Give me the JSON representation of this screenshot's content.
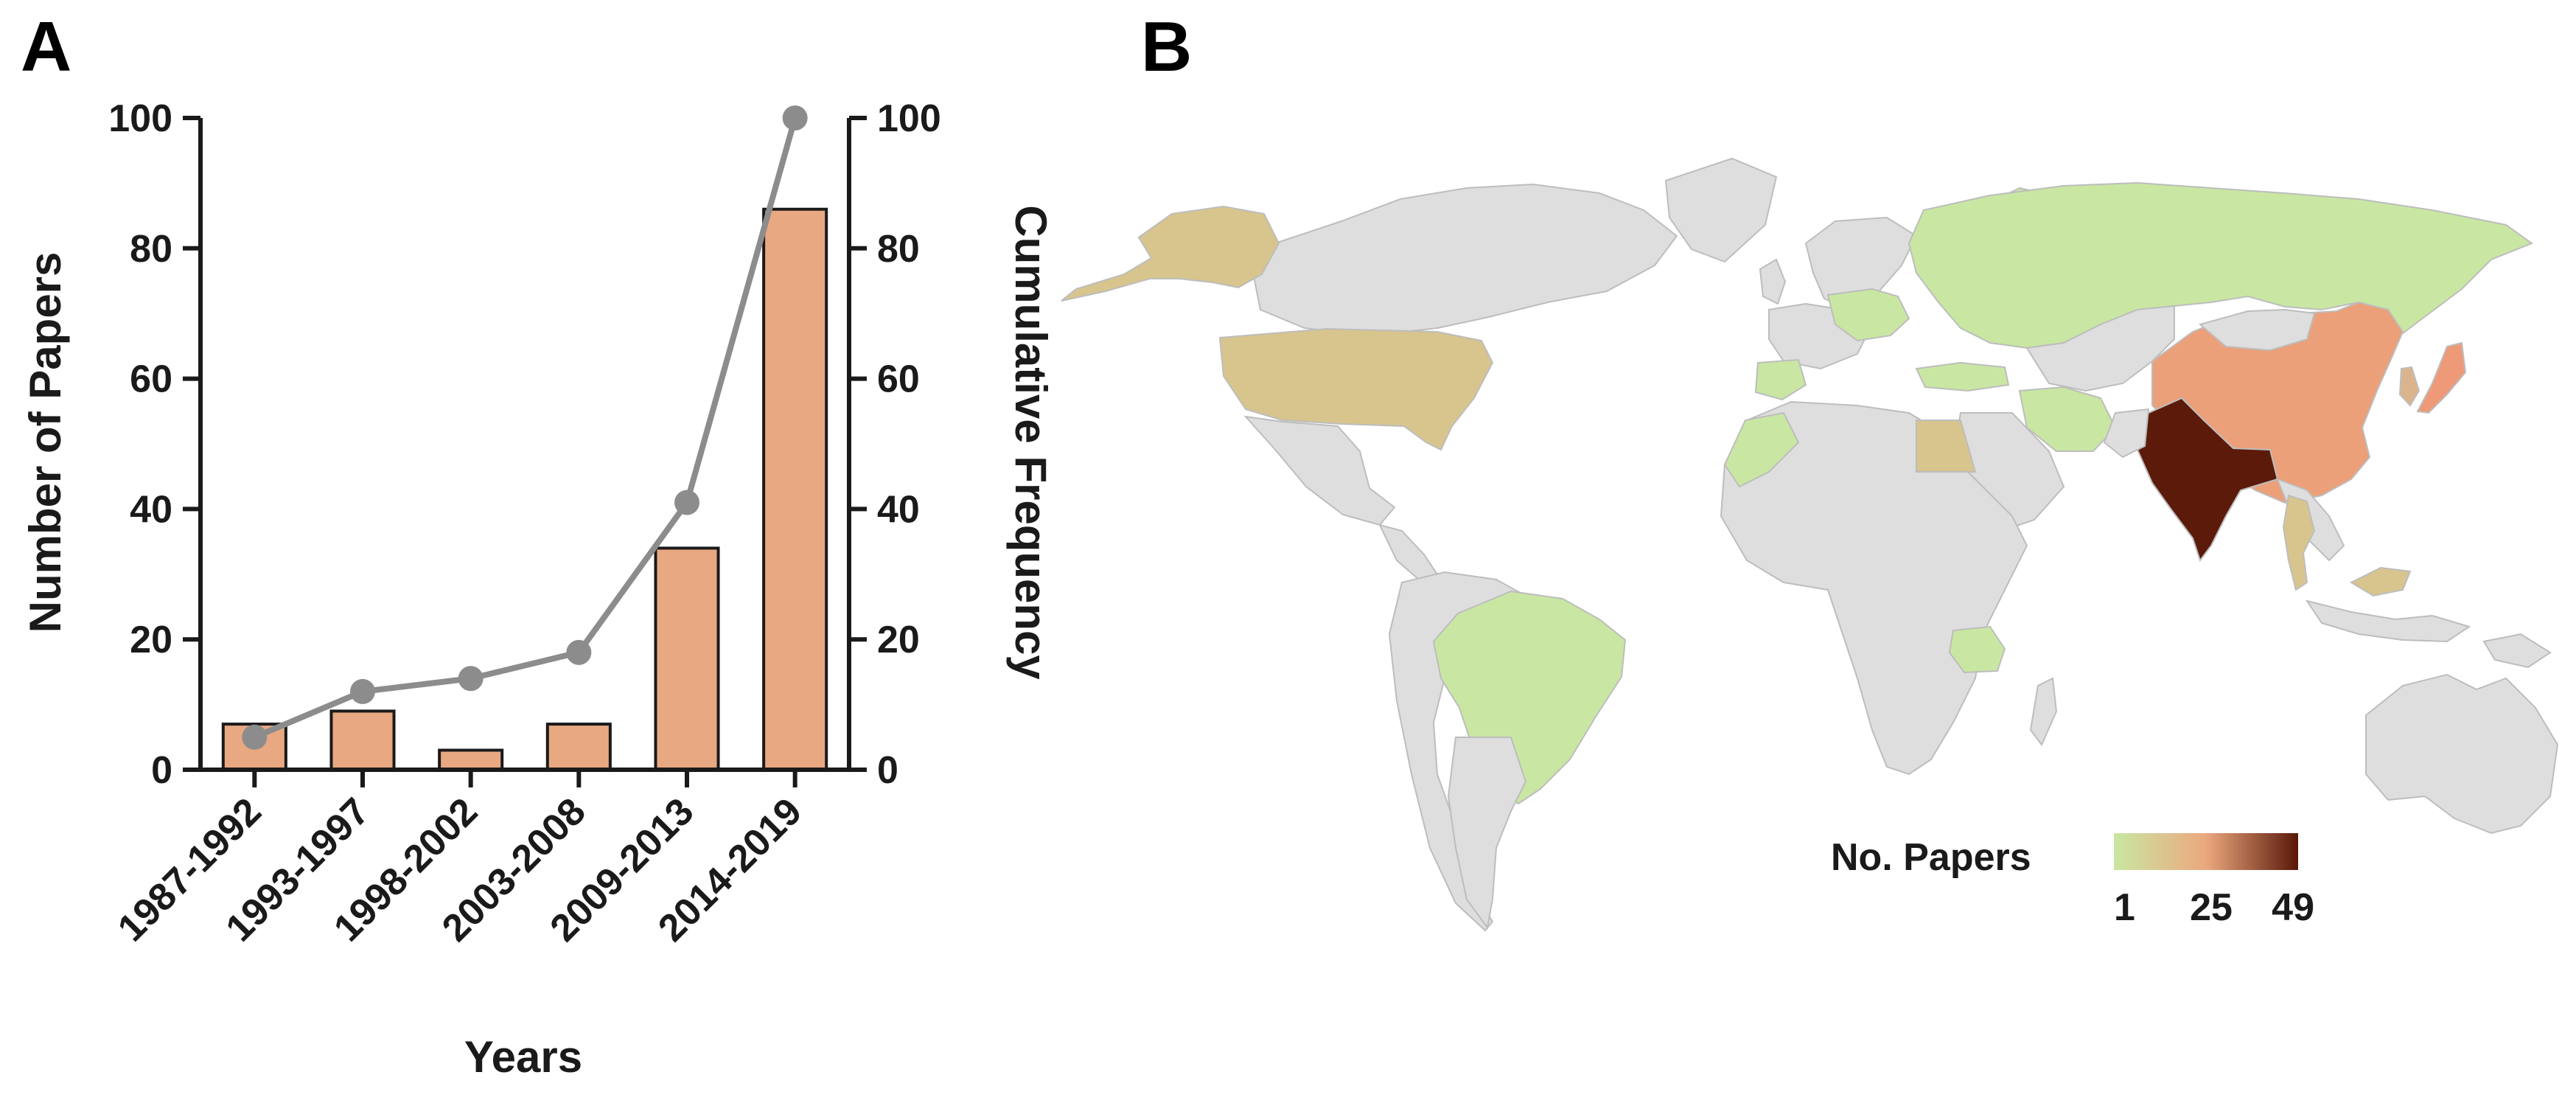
{
  "panels": {
    "a": "A",
    "b": "B"
  },
  "chart_data": [
    {
      "type": "bar",
      "categories": [
        "1987-1992",
        "1993-1997",
        "1998-2002",
        "2003-2008",
        "2009-2013",
        "2014-2019"
      ],
      "series": [
        {
          "name": "",
          "type": "bar",
          "axis": "left",
          "values": [
            7,
            9,
            3,
            7,
            34,
            86
          ],
          "color": "#e8a882"
        },
        {
          "name": "",
          "type": "line",
          "axis": "right",
          "values": [
            5,
            12,
            14,
            18,
            41,
            100
          ],
          "color": "#8c8c8c"
        }
      ],
      "xlabel": "Years",
      "ylabel": "Number of Papers",
      "y2label": "Cumulative Frequency",
      "ylim": [
        0,
        100
      ],
      "y2lim": [
        0,
        100
      ],
      "yticks": [
        0,
        20,
        40,
        60,
        80,
        100
      ],
      "y2ticks": [
        0,
        20,
        40,
        60,
        80,
        100
      ],
      "grid": false
    },
    {
      "type": "heatmap",
      "subtype": "choropleth-world-map",
      "legend_title": "No. Papers",
      "color_scale": {
        "min": 1,
        "mid": 25,
        "max": 49,
        "ticks": [
          "1",
          "25",
          "49"
        ],
        "colors": [
          "#c9e7a2",
          "#eba87e",
          "#5a1708"
        ]
      },
      "no_data_color": "#dedede",
      "legend_position": "bottom-right",
      "regions": [
        {
          "name": "India",
          "color": "#5c1a0a"
        },
        {
          "name": "China",
          "color": "#eba07a"
        },
        {
          "name": "Japan",
          "color": "#ee9a78"
        },
        {
          "name": "United States",
          "color": "#d8c58d"
        },
        {
          "name": "Alaska",
          "color": "#d8c58d"
        },
        {
          "name": "Egypt",
          "color": "#d8c58d"
        },
        {
          "name": "Thailand",
          "color": "#d8c58d"
        },
        {
          "name": "Malaysia",
          "color": "#d8c58d"
        },
        {
          "name": "South Korea",
          "color": "#dbb48e"
        },
        {
          "name": "Russia",
          "color": "#c9e7a2"
        },
        {
          "name": "Brazil",
          "color": "#c9e7a2"
        },
        {
          "name": "Tanzania",
          "color": "#c9e7a2"
        },
        {
          "name": "Morocco",
          "color": "#c9e7a2"
        },
        {
          "name": "Spain",
          "color": "#c9e7a2"
        },
        {
          "name": "Poland",
          "color": "#c9e7a2"
        },
        {
          "name": "Iran",
          "color": "#c9e7a2"
        },
        {
          "name": "Turkey",
          "color": "#c9e7a2"
        },
        {
          "name": "Norway",
          "color": "#c9e7a2"
        }
      ]
    }
  ]
}
